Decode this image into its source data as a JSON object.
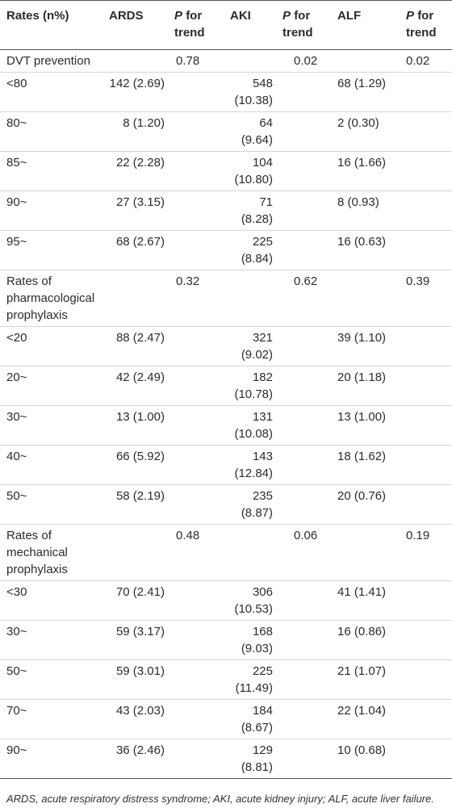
{
  "table": {
    "header": [
      "Rates (n%)",
      "ARDS",
      {
        "italic": "P",
        "rest": "for trend"
      },
      "AKI",
      {
        "italic": "P",
        "rest": "for trend"
      },
      "ALF",
      {
        "italic": "P",
        "rest": "for trend"
      }
    ],
    "rows": [
      [
        "DVT prevention",
        null,
        "0.78",
        null,
        "0.02",
        null,
        "0.02"
      ],
      [
        "<80",
        "142 (2.69)",
        null,
        "548 (10.38)",
        null,
        "68 (1.29)",
        null
      ],
      [
        "80~",
        "8 (1.20)",
        null,
        "64 (9.64)",
        null,
        "2 (0.30)",
        null
      ],
      [
        "85~",
        "22 (2.28)",
        null,
        "104 (10.80)",
        null,
        "16 (1.66)",
        null
      ],
      [
        "90~",
        "27 (3.15)",
        null,
        "71 (8.28)",
        null,
        "8 (0.93)",
        null
      ],
      [
        "95~",
        "68 (2.67)",
        null,
        "225 (8.84)",
        null,
        "16 (0.63)",
        null
      ],
      [
        "Rates of pharmacological prophylaxis",
        null,
        "0.32",
        null,
        "0.62",
        null,
        "0.39"
      ],
      [
        "<20",
        "88 (2.47)",
        null,
        "321 (9.02)",
        null,
        "39 (1.10)",
        null
      ],
      [
        "20~",
        "42 (2.49)",
        null,
        "182 (10.78)",
        null,
        "20 (1.18)",
        null
      ],
      [
        "30~",
        "13 (1.00)",
        null,
        "131 (10.08)",
        null,
        "13 (1.00)",
        null
      ],
      [
        "40~",
        "66 (5.92)",
        null,
        "143 (12.84)",
        null,
        "18 (1.62)",
        null
      ],
      [
        "50~",
        "58 (2.19)",
        null,
        "235 (8.87)",
        null,
        "20 (0.76)",
        null
      ],
      [
        "Rates of mechanical prophylaxis",
        null,
        "0.48",
        null,
        "0.06",
        null,
        "0.19"
      ],
      [
        "<30",
        "70 (2.41)",
        null,
        "306 (10.53)",
        null,
        "41 (1.41)",
        null
      ],
      [
        "30~",
        "59 (3.17)",
        null,
        "168 (9.03)",
        null,
        "16 (0.86)",
        null
      ],
      [
        "50~",
        "59 (3.01)",
        null,
        "225 (11.49)",
        null,
        "21 (1.07)",
        null
      ],
      [
        "70~",
        "43 (2.03)",
        null,
        "184 (8.67)",
        null,
        "22 (1.04)",
        null
      ],
      [
        "90~",
        "36 (2.46)",
        null,
        "129 (8.81)",
        null,
        "10 (0.68)",
        null
      ]
    ],
    "footnote": "ARDS, acute respiratory distress syndrome; AKI, acute kidney injury; ALF, acute liver failure."
  }
}
